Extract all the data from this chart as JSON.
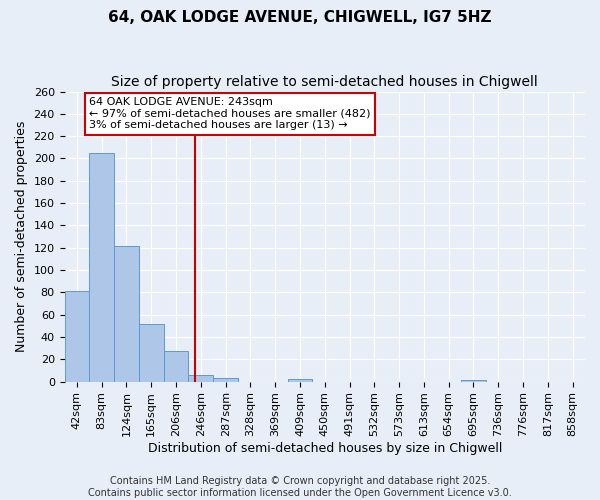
{
  "title": "64, OAK LODGE AVENUE, CHIGWELL, IG7 5HZ",
  "subtitle": "Size of property relative to semi-detached houses in Chigwell",
  "xlabel": "Distribution of semi-detached houses by size in Chigwell",
  "ylabel": "Number of semi-detached properties",
  "bar_values": [
    81,
    205,
    122,
    52,
    27,
    6,
    3,
    0,
    0,
    2,
    0,
    0,
    0,
    0,
    0,
    0,
    1,
    0,
    0,
    0,
    0
  ],
  "bin_labels": [
    "42sqm",
    "83sqm",
    "124sqm",
    "165sqm",
    "206sqm",
    "246sqm",
    "287sqm",
    "328sqm",
    "369sqm",
    "409sqm",
    "450sqm",
    "491sqm",
    "532sqm",
    "573sqm",
    "613sqm",
    "654sqm",
    "695sqm",
    "736sqm",
    "776sqm",
    "817sqm",
    "858sqm"
  ],
  "bar_color": "#aec6e8",
  "bar_edge_color": "#5b9bd5",
  "property_line_x": 4.78,
  "annotation_text": "64 OAK LODGE AVENUE: 243sqm\n← 97% of semi-detached houses are smaller (482)\n3% of semi-detached houses are larger (13) →",
  "annotation_box_color": "#cc0000",
  "ylim": [
    0,
    260
  ],
  "yticks": [
    0,
    20,
    40,
    60,
    80,
    100,
    120,
    140,
    160,
    180,
    200,
    220,
    240,
    260
  ],
  "background_color": "#e8eef7",
  "grid_color": "#ffffff",
  "footer_text": "Contains HM Land Registry data © Crown copyright and database right 2025.\nContains public sector information licensed under the Open Government Licence v3.0.",
  "title_fontsize": 11,
  "subtitle_fontsize": 10,
  "xlabel_fontsize": 9,
  "ylabel_fontsize": 9,
  "tick_fontsize": 8,
  "annotation_fontsize": 8,
  "footer_fontsize": 7
}
